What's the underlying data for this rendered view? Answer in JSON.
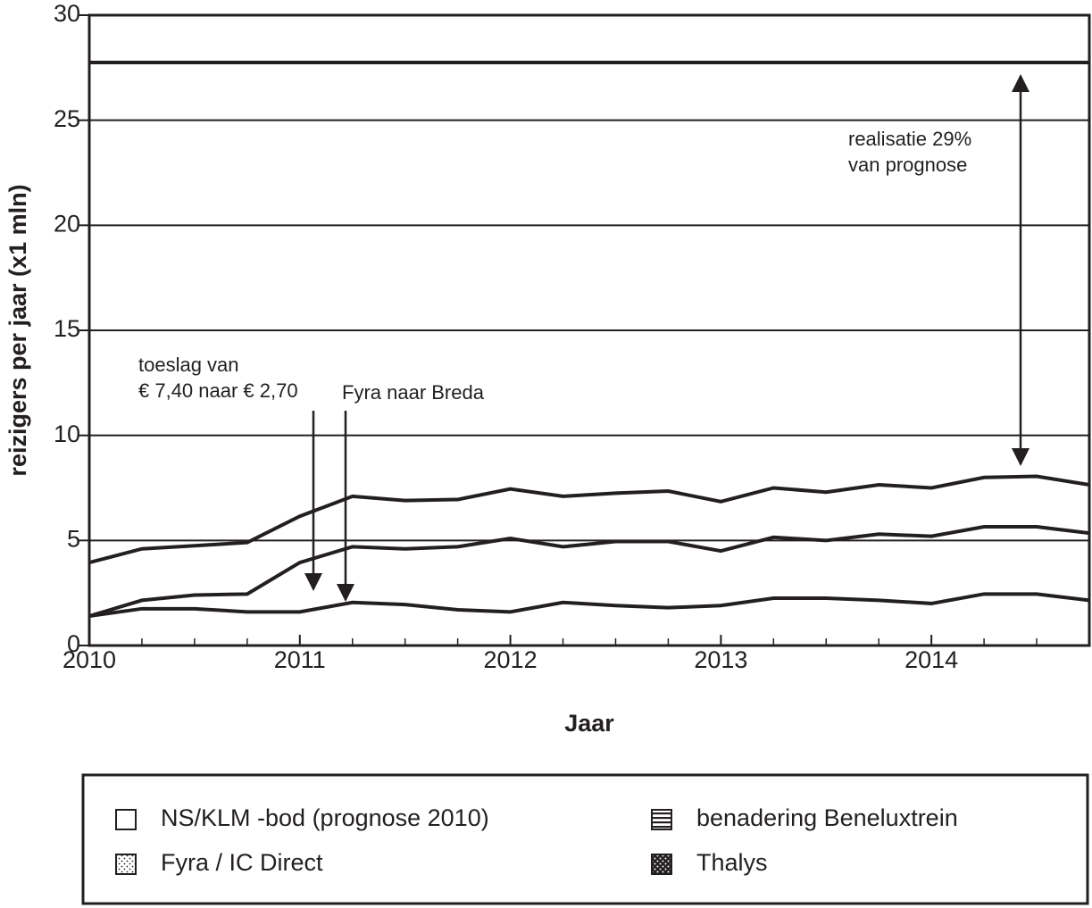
{
  "chart_data": {
    "type": "area",
    "x_label": "Jaar",
    "y_label": "reizigers per jaar (x1 mln)",
    "xlim": [
      2010,
      2014.75
    ],
    "xticks": [
      2010,
      2011,
      2012,
      2013,
      2014
    ],
    "ylim": [
      0,
      30
    ],
    "yticks": [
      0,
      5,
      10,
      15,
      20,
      25,
      30
    ],
    "grid": true,
    "x": [
      2010,
      2010.25,
      2010.5,
      2010.75,
      2011,
      2011.25,
      2011.5,
      2011.75,
      2012,
      2012.25,
      2012.5,
      2012.75,
      2013,
      2013.25,
      2013.5,
      2013.75,
      2014,
      2014.25,
      2014.5,
      2014.75
    ],
    "series": [
      {
        "name": "Thalys",
        "stacked": true,
        "pattern": "dense-dots",
        "color": "#231f20",
        "values": [
          1.4,
          1.75,
          1.75,
          1.6,
          1.6,
          2.05,
          1.95,
          1.7,
          1.6,
          2.05,
          1.9,
          1.8,
          1.9,
          2.25,
          2.25,
          2.15,
          2.0,
          2.45,
          2.45,
          2.15
        ]
      },
      {
        "name": "Fyra / IC Direct",
        "stacked": true,
        "pattern": "dots",
        "color": "#231f20",
        "values": [
          0,
          0.4,
          0.65,
          0.85,
          2.35,
          2.65,
          2.65,
          3.0,
          3.5,
          2.65,
          3.05,
          3.15,
          2.6,
          2.9,
          2.75,
          3.15,
          3.2,
          3.2,
          3.2,
          3.2
        ]
      },
      {
        "name": "benadering Beneluxtrein",
        "stacked": true,
        "pattern": "hlines",
        "color": "#231f20",
        "values": [
          2.55,
          2.45,
          2.35,
          2.45,
          2.2,
          2.4,
          2.3,
          2.25,
          2.35,
          2.4,
          2.3,
          2.4,
          2.35,
          2.35,
          2.3,
          2.35,
          2.3,
          2.35,
          2.4,
          2.3
        ]
      },
      {
        "name": "NS/KLM -bod (prognose 2010)",
        "stacked": false,
        "pattern": "none",
        "color": "#231f20",
        "values": [
          27.75,
          27.75,
          27.75,
          27.75,
          27.75,
          27.75,
          27.75,
          27.75,
          27.75,
          27.75,
          27.75,
          27.75,
          27.75,
          27.75,
          27.75,
          27.75,
          27.75,
          27.75,
          27.75,
          27.75
        ]
      }
    ],
    "annotations": [
      {
        "text": [
          "toeslag van",
          "€ 7,40 naar € 2,70"
        ]
      },
      {
        "text": [
          "Fyra naar Breda"
        ]
      },
      {
        "text": [
          "realisatie 29%",
          "van prognose"
        ]
      }
    ]
  }
}
